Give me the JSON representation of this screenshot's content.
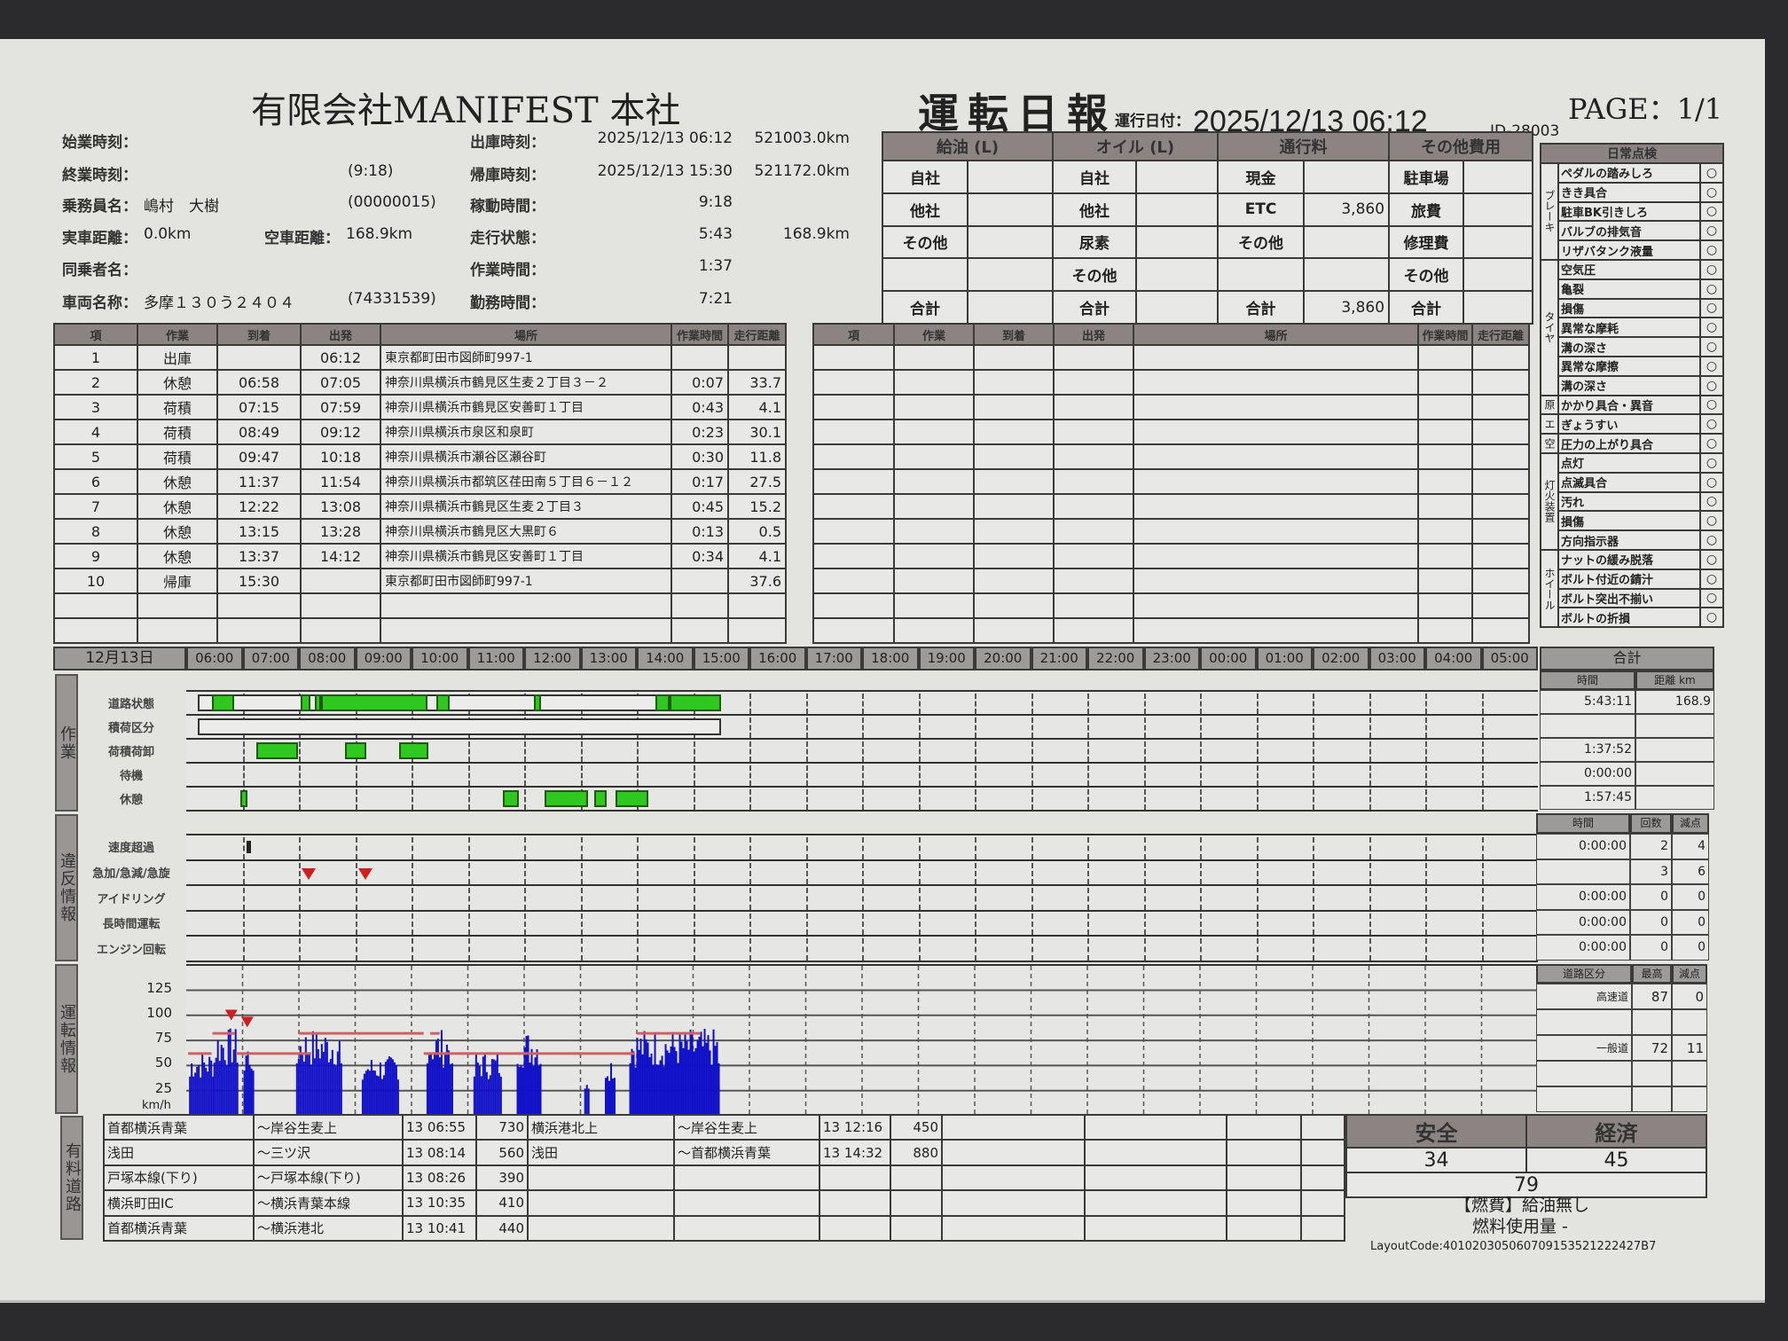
{
  "header": {
    "company": "有限会社MANIFEST 本社",
    "title": "運転日報",
    "date_label": "運行日付：",
    "date": "2025/12/13 06:12",
    "id": "ID-28003",
    "page": "PAGE：1/1"
  },
  "info_left": [
    {
      "label": "始業時刻：",
      "value": "",
      "extra": ""
    },
    {
      "label": "終業時刻：",
      "value": "",
      "extra": "(9:18)"
    },
    {
      "label": "乗務員名：",
      "value": "嶋村　大樹",
      "extra": "(00000015)"
    },
    {
      "label": "実車距離：",
      "value": "0.0km",
      "label2": "空車距離：",
      "value2": "168.9km"
    },
    {
      "label": "同乗者名：",
      "value": "",
      "extra": ""
    },
    {
      "label": "車両名称：",
      "value": "多摩１３０う２４０４",
      "extra": "(74331539)"
    }
  ],
  "info_right": [
    {
      "label": "出庫時刻：",
      "value": "2025/12/13 06:12",
      "extra": "521003.0km"
    },
    {
      "label": "帰庫時刻：",
      "value": "2025/12/13 15:30",
      "extra": "521172.0km"
    },
    {
      "label": "稼動時間：",
      "value": "9:18",
      "extra": ""
    },
    {
      "label": "走行状態：",
      "value": "5:43",
      "extra": "168.9km"
    },
    {
      "label": "作業時間：",
      "value": "1:37",
      "extra": ""
    },
    {
      "label": "勤務時間：",
      "value": "7:21",
      "extra": ""
    }
  ],
  "costs": {
    "headers": [
      "給油 (L)",
      "オイル (L)",
      "通行料",
      "その他費用"
    ],
    "rows": [
      [
        "自社",
        "",
        "自社",
        "",
        "現金",
        "",
        "駐車場",
        ""
      ],
      [
        "他社",
        "",
        "他社",
        "",
        "ETC",
        "3,860",
        "旅費",
        ""
      ],
      [
        "その他",
        "",
        "尿素",
        "",
        "その他",
        "",
        "修理費",
        ""
      ],
      [
        "",
        "",
        "その他",
        "",
        "",
        "",
        "その他",
        ""
      ],
      [
        "合計",
        "",
        "合計",
        "",
        "合計",
        "3,860",
        "合計",
        ""
      ]
    ]
  },
  "inspection": {
    "title": "日常点検",
    "groups": [
      {
        "name": "ブレーキ",
        "items": [
          {
            "label": "ペダルの踏みしろ",
            "result": "○"
          },
          {
            "label": "きき具合",
            "result": "○"
          },
          {
            "label": "駐車BK引きしろ",
            "result": "○"
          },
          {
            "label": "バルブの排気音",
            "result": "○"
          },
          {
            "label": "リザバタンク液量",
            "result": "○"
          }
        ]
      },
      {
        "name": "タイヤ",
        "items": [
          {
            "label": "空気圧",
            "result": "○"
          },
          {
            "label": "亀裂",
            "result": "○"
          },
          {
            "label": "損傷",
            "result": "○"
          },
          {
            "label": "異常な摩耗",
            "result": "○"
          },
          {
            "label": "溝の深さ",
            "result": "○"
          },
          {
            "label": "異常な摩擦",
            "result": "○"
          },
          {
            "label": "溝の深さ",
            "result": "○"
          }
        ]
      },
      {
        "name": "原",
        "items": [
          {
            "label": "かかり具合・異音",
            "result": "○"
          }
        ]
      },
      {
        "name": "エ",
        "items": [
          {
            "label": "ぎょうすい",
            "result": "○"
          }
        ]
      },
      {
        "name": "空",
        "items": [
          {
            "label": "圧力の上がり具合",
            "result": "○"
          }
        ]
      },
      {
        "name": "灯火装置",
        "items": [
          {
            "label": "点灯",
            "result": "○"
          },
          {
            "label": "点滅具合",
            "result": "○"
          },
          {
            "label": "汚れ",
            "result": "○"
          },
          {
            "label": "損傷",
            "result": "○"
          },
          {
            "label": "方向指示器",
            "result": "○"
          }
        ]
      },
      {
        "name": "ホイール",
        "items": [
          {
            "label": "ナットの緩み脱落",
            "result": "○"
          },
          {
            "label": "ボルト付近の錆汁",
            "result": "○"
          },
          {
            "label": "ボルト突出不揃い",
            "result": "○"
          },
          {
            "label": "ボルトの折損",
            "result": "○"
          }
        ]
      }
    ]
  },
  "work_table": {
    "headers": [
      "項",
      "作業",
      "到着",
      "出発",
      "場所",
      "作業時間",
      "走行距離"
    ],
    "rows": [
      [
        "1",
        "出庫",
        "",
        "06:12",
        "東京都町田市図師町997-1",
        "",
        ""
      ],
      [
        "2",
        "休憩",
        "06:58",
        "07:05",
        "神奈川県横浜市鶴見区生麦２丁目３－２",
        "0:07",
        "33.7"
      ],
      [
        "3",
        "荷積",
        "07:15",
        "07:59",
        "神奈川県横浜市鶴見区安善町１丁目",
        "0:43",
        "4.1"
      ],
      [
        "4",
        "荷積",
        "08:49",
        "09:12",
        "神奈川県横浜市泉区和泉町",
        "0:23",
        "30.1"
      ],
      [
        "5",
        "荷積",
        "09:47",
        "10:18",
        "神奈川県横浜市瀬谷区瀬谷町",
        "0:30",
        "11.8"
      ],
      [
        "6",
        "休憩",
        "11:37",
        "11:54",
        "神奈川県横浜市都筑区荏田南５丁目６－１２",
        "0:17",
        "27.5"
      ],
      [
        "7",
        "休憩",
        "12:22",
        "13:08",
        "神奈川県横浜市鶴見区生麦２丁目３",
        "0:45",
        "15.2"
      ],
      [
        "8",
        "休憩",
        "13:15",
        "13:28",
        "神奈川県横浜市鶴見区大黒町６",
        "0:13",
        "0.5"
      ],
      [
        "9",
        "休憩",
        "13:37",
        "14:12",
        "神奈川県横浜市鶴見区安善町１丁目",
        "0:34",
        "4.1"
      ],
      [
        "10",
        "帰庫",
        "15:30",
        "",
        "東京都町田市図師町997-1",
        "",
        "37.6"
      ],
      [
        "",
        "",
        "",
        "",
        "",
        "",
        ""
      ],
      [
        "",
        "",
        "",
        "",
        "",
        "",
        ""
      ]
    ]
  },
  "timeline": {
    "date": "12月13日",
    "hours": [
      "06:00",
      "07:00",
      "08:00",
      "09:00",
      "10:00",
      "11:00",
      "12:00",
      "13:00",
      "14:00",
      "15:00",
      "16:00",
      "17:00",
      "18:00",
      "19:00",
      "20:00",
      "21:00",
      "22:00",
      "23:00",
      "00:00",
      "01:00",
      "02:00",
      "03:00",
      "04:00",
      "05:00"
    ],
    "total_label": "合計",
    "work_section": "作業",
    "violation_section": "違反情報",
    "driving_section": "運転情報",
    "toll_section": "有料道路",
    "work_total_headers": [
      "時間",
      "距離 km"
    ],
    "work_rows": [
      {
        "label": "道路状態",
        "time": "5:43:11",
        "distance": "168.9",
        "outline": [
          "06:12",
          "15:30"
        ],
        "bars": [
          [
            "06:27",
            "06:51"
          ],
          [
            "08:02",
            "08:12"
          ],
          [
            "08:17",
            "08:24"
          ],
          [
            "08:24",
            "10:17"
          ],
          [
            "10:26",
            "10:41"
          ],
          [
            "12:10",
            "12:18"
          ],
          [
            "14:20",
            "14:35"
          ],
          [
            "14:35",
            "15:30"
          ]
        ]
      },
      {
        "label": "積荷区分",
        "time": "",
        "distance": "",
        "outline": [
          "06:12",
          "15:30"
        ],
        "bars": []
      },
      {
        "label": "荷積荷卸",
        "time": "1:37:52",
        "distance": "",
        "bars": [
          [
            "07:15",
            "07:59"
          ],
          [
            "08:49",
            "09:12"
          ],
          [
            "09:47",
            "10:18"
          ]
        ]
      },
      {
        "label": "待機",
        "time": "0:00:00",
        "distance": "",
        "bars": []
      },
      {
        "label": "休憩",
        "time": "1:57:45",
        "distance": "",
        "bars": [
          [
            "06:58",
            "07:05"
          ],
          [
            "11:37",
            "11:54"
          ],
          [
            "12:22",
            "13:08"
          ],
          [
            "13:15",
            "13:28"
          ],
          [
            "13:37",
            "14:12"
          ]
        ]
      }
    ],
    "violation_headers": [
      "時間",
      "回数",
      "減点"
    ],
    "violation_rows": [
      {
        "label": "速度超過",
        "time": "0:00:00",
        "count": "2",
        "points": "4",
        "marks": [
          {
            "type": "bar",
            "time": "07:04"
          }
        ]
      },
      {
        "label": "急加/急減/急旋",
        "time": "",
        "count": "3",
        "points": "6",
        "marks": [
          {
            "type": "triangle",
            "time": "08:10"
          },
          {
            "type": "triangle",
            "time": "09:11"
          }
        ]
      },
      {
        "label": "アイドリング",
        "time": "0:00:00",
        "count": "0",
        "points": "0",
        "marks": []
      },
      {
        "label": "長時間運転",
        "time": "0:00:00",
        "count": "0",
        "points": "0",
        "marks": []
      },
      {
        "label": "エンジン回転",
        "time": "0:00:00",
        "count": "0",
        "points": "0",
        "marks": []
      }
    ],
    "road_headers": [
      "道路区分",
      "最高",
      "減点"
    ],
    "road_rows": [
      [
        "高速道",
        "87",
        "0"
      ],
      [
        "",
        "",
        ""
      ],
      [
        "一般道",
        "72",
        "11"
      ],
      [
        "",
        "",
        ""
      ],
      [
        "",
        "",
        ""
      ]
    ]
  },
  "chart_data": {
    "type": "area",
    "ylabel": "km/h",
    "y_ticks": [
      "125",
      "100",
      "75",
      "50",
      "25"
    ],
    "ylim": [
      0,
      125
    ],
    "xlim": [
      "06:00",
      "06:00"
    ],
    "grid": true,
    "segments": [
      {
        "from": "06:03",
        "to": "06:28",
        "peak": 65
      },
      {
        "from": "06:29",
        "to": "06:54",
        "peak": 88
      },
      {
        "from": "07:01",
        "to": "07:12",
        "peak": 75
      },
      {
        "from": "07:57",
        "to": "08:45",
        "peak": 87
      },
      {
        "from": "09:07",
        "to": "09:46",
        "peak": 60
      },
      {
        "from": "10:16",
        "to": "10:44",
        "peak": 87
      },
      {
        "from": "11:06",
        "to": "11:35",
        "peak": 65
      },
      {
        "from": "11:52",
        "to": "12:18",
        "peak": 86
      },
      {
        "from": "13:04",
        "to": "13:09",
        "peak": 45
      },
      {
        "from": "13:26",
        "to": "13:37",
        "peak": 63
      },
      {
        "from": "13:52",
        "to": "15:28",
        "peak": 87
      }
    ],
    "limit_lines": [
      {
        "from": "06:28",
        "to": "06:52",
        "speed": 82
      },
      {
        "from": "08:00",
        "to": "10:13",
        "speed": 82
      },
      {
        "from": "10:20",
        "to": "10:30",
        "speed": 82
      },
      {
        "from": "14:00",
        "to": "15:08",
        "speed": 82
      },
      {
        "from": "06:02",
        "to": "06:27",
        "speed": 62
      },
      {
        "from": "06:53",
        "to": "08:13",
        "speed": 62
      },
      {
        "from": "10:13",
        "to": "13:58",
        "speed": 62
      }
    ],
    "markers": [
      {
        "time": "06:48",
        "speed": 95
      },
      {
        "time": "07:05",
        "speed": 88
      }
    ],
    "colors": {
      "speed": "#1010c8",
      "limit": "#d06060",
      "marker": "#cc2020"
    }
  },
  "tolls": {
    "rows": [
      [
        "首都横浜青葉",
        "～岸谷生麦上",
        "13 06:55",
        "730",
        "横浜港北上",
        "～岸谷生麦上",
        "13 12:16",
        "450",
        "",
        "",
        "",
        ""
      ],
      [
        "浅田",
        "～三ツ沢",
        "13 08:14",
        "560",
        "浅田",
        "～首都横浜青葉",
        "13 14:32",
        "880",
        "",
        "",
        "",
        ""
      ],
      [
        "戸塚本線(下り)",
        "～戸塚本線(下り)",
        "13 08:26",
        "390",
        "",
        "",
        "",
        "",
        "",
        "",
        "",
        ""
      ],
      [
        "横浜町田IC",
        "～横浜青葉本線",
        "13 10:35",
        "410",
        "",
        "",
        "",
        "",
        "",
        "",
        "",
        ""
      ],
      [
        "首都横浜青葉",
        "～横浜港北",
        "13 10:41",
        "440",
        "",
        "",
        "",
        "",
        "",
        "",
        "",
        ""
      ]
    ]
  },
  "score": {
    "safety_label": "安全",
    "economy_label": "経済",
    "safety": "34",
    "economy": "45",
    "total": "79"
  },
  "fuel": {
    "line1": "【燃費】給油無し",
    "line2": "燃料使用量 -"
  },
  "layout_code": "LayoutCode:401020305060709153521222427B7",
  "colors": {
    "green": "#2fc81e",
    "header": "#8c8482"
  }
}
